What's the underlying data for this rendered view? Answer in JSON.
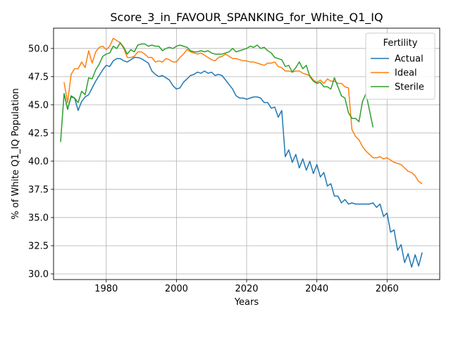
{
  "chart_data": {
    "type": "line",
    "title": "Score_3_in_FAVOUR_SPANKING_for_White_Q1_IQ",
    "xlabel": "Years",
    "ylabel": "% of White Q1_IQ Population",
    "xlim": [
      1965,
      2075
    ],
    "ylim": [
      29.5,
      51.8
    ],
    "xticks": [
      1980,
      2000,
      2020,
      2040,
      2060
    ],
    "yticks": [
      30.0,
      32.5,
      35.0,
      37.5,
      40.0,
      42.5,
      45.0,
      47.5,
      50.0
    ],
    "xtick_labels": [
      "1980",
      "2000",
      "2020",
      "2040",
      "2060"
    ],
    "ytick_labels": [
      "30.0",
      "32.5",
      "35.0",
      "37.5",
      "40.0",
      "42.5",
      "45.0",
      "47.5",
      "50.0"
    ],
    "grid": true,
    "legend": {
      "title": "Fertility",
      "position": "top-right"
    },
    "series": [
      {
        "name": "Actual",
        "color": "#1f77b4",
        "x": [
          1968,
          1969,
          1970,
          1971,
          1972,
          1973,
          1974,
          1975,
          1976,
          1977,
          1978,
          1979,
          1980,
          1981,
          1982,
          1983,
          1984,
          1985,
          1986,
          1987,
          1988,
          1989,
          1990,
          1991,
          1992,
          1993,
          1994,
          1995,
          1996,
          1997,
          1998,
          1999,
          2000,
          2001,
          2002,
          2003,
          2004,
          2005,
          2006,
          2007,
          2008,
          2009,
          2010,
          2011,
          2012,
          2013,
          2014,
          2015,
          2016,
          2017,
          2018,
          2019,
          2020,
          2021,
          2022,
          2023,
          2024,
          2025,
          2026,
          2027,
          2028,
          2029,
          2030,
          2031,
          2032,
          2033,
          2034,
          2035,
          2036,
          2037,
          2038,
          2039,
          2040,
          2041,
          2042,
          2043,
          2044,
          2045,
          2046,
          2047,
          2048,
          2049,
          2050,
          2051,
          2052,
          2053,
          2054,
          2055,
          2056,
          2057,
          2058,
          2059,
          2060,
          2061,
          2062,
          2063,
          2064,
          2065,
          2066,
          2067,
          2068,
          2069,
          2070
        ],
        "y": [
          46.0,
          44.6,
          45.7,
          45.6,
          44.5,
          45.3,
          45.7,
          45.9,
          46.5,
          47.1,
          47.6,
          48.1,
          48.5,
          48.4,
          48.9,
          49.1,
          49.1,
          48.9,
          48.8,
          49.0,
          49.2,
          49.2,
          49.1,
          48.9,
          48.7,
          48.0,
          47.7,
          47.5,
          47.6,
          47.4,
          47.2,
          46.7,
          46.4,
          46.5,
          47.0,
          47.3,
          47.6,
          47.7,
          47.9,
          47.8,
          48.0,
          47.8,
          47.9,
          47.6,
          47.7,
          47.6,
          47.2,
          46.8,
          46.4,
          45.8,
          45.6,
          45.6,
          45.5,
          45.6,
          45.7,
          45.7,
          45.6,
          45.2,
          45.2,
          44.7,
          44.8,
          43.9,
          44.5,
          40.4,
          41.0,
          39.9,
          40.6,
          39.4,
          40.2,
          39.2,
          40.0,
          38.9,
          39.7,
          38.6,
          39.0,
          37.8,
          38.0,
          36.9,
          36.9,
          36.3,
          36.6,
          36.2,
          36.3,
          36.2,
          36.2,
          36.2,
          36.2,
          36.2,
          36.3,
          35.9,
          36.2,
          35.1,
          35.4,
          33.7,
          33.9,
          32.1,
          32.6,
          31.0,
          31.8,
          30.6,
          31.7,
          30.7,
          31.9
        ]
      },
      {
        "name": "Ideal",
        "color": "#ff7f0e",
        "x": [
          1968,
          1969,
          1970,
          1971,
          1972,
          1973,
          1974,
          1975,
          1976,
          1977,
          1978,
          1979,
          1980,
          1981,
          1982,
          1983,
          1984,
          1985,
          1986,
          1987,
          1988,
          1989,
          1990,
          1991,
          1992,
          1993,
          1994,
          1995,
          1996,
          1997,
          1998,
          1999,
          2000,
          2001,
          2002,
          2003,
          2004,
          2005,
          2006,
          2007,
          2008,
          2009,
          2010,
          2011,
          2012,
          2013,
          2014,
          2015,
          2016,
          2017,
          2018,
          2019,
          2020,
          2021,
          2022,
          2023,
          2024,
          2025,
          2026,
          2027,
          2028,
          2029,
          2030,
          2031,
          2032,
          2033,
          2034,
          2035,
          2036,
          2037,
          2038,
          2039,
          2040,
          2041,
          2042,
          2043,
          2044,
          2045,
          2046,
          2047,
          2048,
          2049,
          2050,
          2051,
          2052,
          2053,
          2054,
          2055,
          2056,
          2057,
          2058,
          2059,
          2060,
          2061,
          2062,
          2063,
          2064,
          2065,
          2066,
          2067,
          2068,
          2069,
          2070
        ],
        "y": [
          47.0,
          45.2,
          47.7,
          48.2,
          48.2,
          48.8,
          48.3,
          49.8,
          48.7,
          49.7,
          50.1,
          50.2,
          49.9,
          50.2,
          50.9,
          50.7,
          50.5,
          50.0,
          49.2,
          49.2,
          49.3,
          49.7,
          49.7,
          49.5,
          49.2,
          49.2,
          48.8,
          48.9,
          48.8,
          49.1,
          49.0,
          48.8,
          48.8,
          49.2,
          49.5,
          49.9,
          49.7,
          49.6,
          49.5,
          49.6,
          49.4,
          49.2,
          49.0,
          48.9,
          49.2,
          49.3,
          49.5,
          49.3,
          49.1,
          49.1,
          49.0,
          48.9,
          48.9,
          48.8,
          48.8,
          48.7,
          48.6,
          48.5,
          48.7,
          48.7,
          48.8,
          48.4,
          48.3,
          48.0,
          48.0,
          47.9,
          48.0,
          48.0,
          47.8,
          47.7,
          47.6,
          47.2,
          47.0,
          47.2,
          46.9,
          47.3,
          47.1,
          47.1,
          46.9,
          46.9,
          46.6,
          46.5,
          42.8,
          42.2,
          41.9,
          41.3,
          40.9,
          40.6,
          40.3,
          40.3,
          40.4,
          40.2,
          40.3,
          40.1,
          39.9,
          39.8,
          39.7,
          39.4,
          39.1,
          39.0,
          38.7,
          38.2,
          38.0
        ]
      },
      {
        "name": "Sterile",
        "color": "#2ca02c",
        "x": [
          1967,
          1968,
          1969,
          1970,
          1971,
          1972,
          1973,
          1974,
          1975,
          1976,
          1977,
          1978,
          1979,
          1980,
          1981,
          1982,
          1983,
          1984,
          1985,
          1986,
          1987,
          1988,
          1989,
          1990,
          1991,
          1992,
          1993,
          1994,
          1995,
          1996,
          1997,
          1998,
          1999,
          2000,
          2001,
          2002,
          2003,
          2004,
          2005,
          2006,
          2007,
          2008,
          2009,
          2010,
          2011,
          2012,
          2013,
          2014,
          2015,
          2016,
          2017,
          2018,
          2019,
          2020,
          2021,
          2022,
          2023,
          2024,
          2025,
          2026,
          2027,
          2028,
          2029,
          2030,
          2031,
          2032,
          2033,
          2034,
          2035,
          2036,
          2037,
          2038,
          2039,
          2040,
          2041,
          2042,
          2043,
          2044,
          2045,
          2046,
          2047,
          2048,
          2049,
          2050,
          2051,
          2052,
          2053,
          2054,
          2055,
          2056
        ],
        "y": [
          41.7,
          46.0,
          44.6,
          45.8,
          45.6,
          45.2,
          46.2,
          45.9,
          47.4,
          47.3,
          48.1,
          48.6,
          49.3,
          49.5,
          49.6,
          50.2,
          50.0,
          50.5,
          50.1,
          49.5,
          49.9,
          49.7,
          50.3,
          50.4,
          50.4,
          50.2,
          50.3,
          50.2,
          50.2,
          49.8,
          50.0,
          50.1,
          50.0,
          50.2,
          50.3,
          50.2,
          50.1,
          49.8,
          49.7,
          49.7,
          49.8,
          49.7,
          49.8,
          49.6,
          49.5,
          49.5,
          49.5,
          49.6,
          49.7,
          50.0,
          49.7,
          49.8,
          49.9,
          50.0,
          50.2,
          50.1,
          50.3,
          50.0,
          50.1,
          49.8,
          49.6,
          49.2,
          49.1,
          49.0,
          48.4,
          48.5,
          47.9,
          48.3,
          48.8,
          48.2,
          48.5,
          47.5,
          47.1,
          46.9,
          47.0,
          46.6,
          46.6,
          46.4,
          47.4,
          46.6,
          45.8,
          45.6,
          44.3,
          43.8,
          43.8,
          43.5,
          45.3,
          46.0,
          44.5,
          43.0
        ]
      }
    ]
  }
}
